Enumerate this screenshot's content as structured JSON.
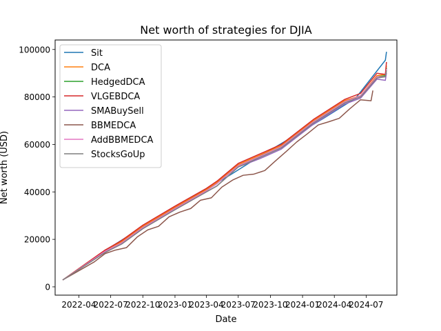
{
  "chart_data": {
    "type": "line",
    "title": "Net worth of strategies for DJIA",
    "xlabel": "Date",
    "ylabel": "Net worth (USD)",
    "x_ticks": [
      "2022-04",
      "2022-07",
      "2022-10",
      "2023-01",
      "2023-04",
      "2023-07",
      "2023-10",
      "2024-01",
      "2024-04",
      "2024-07"
    ],
    "x_range": [
      "2022-01-23",
      "2024-09-27"
    ],
    "ylim": [
      -3500,
      104000
    ],
    "y_ticks": [
      0,
      20000,
      40000,
      60000,
      80000,
      100000
    ],
    "y_tick_labels": [
      "0",
      "20000",
      "40000",
      "60000",
      "80000",
      "100000"
    ],
    "grid": false,
    "legend_position": "upper-left",
    "series": [
      {
        "name": "Sit",
        "color": "#1f77b4",
        "points": [
          [
            "2022-02-15",
            3000
          ],
          [
            "2022-06-01",
            14000
          ],
          [
            "2022-09-01",
            22500
          ],
          [
            "2022-12-01",
            30500
          ],
          [
            "2023-03-01",
            38500
          ],
          [
            "2023-06-01",
            46500
          ],
          [
            "2023-09-01",
            55000
          ],
          [
            "2023-12-01",
            63000
          ],
          [
            "2024-03-01",
            71000
          ],
          [
            "2024-06-01",
            79500
          ],
          [
            "2024-08-25",
            95500
          ],
          [
            "2024-08-28",
            98800
          ]
        ]
      },
      {
        "name": "DCA",
        "color": "#ff7f0e",
        "points": [
          [
            "2022-02-15",
            3000
          ],
          [
            "2022-06-15",
            15500
          ],
          [
            "2022-08-01",
            19000
          ],
          [
            "2022-10-01",
            25500
          ],
          [
            "2023-01-01",
            33500
          ],
          [
            "2023-04-01",
            41000
          ],
          [
            "2023-05-01",
            44000
          ],
          [
            "2023-07-01",
            51500
          ],
          [
            "2023-09-01",
            55500
          ],
          [
            "2023-11-01",
            59500
          ],
          [
            "2024-02-01",
            70000
          ],
          [
            "2024-05-01",
            78500
          ],
          [
            "2024-06-15",
            80500
          ],
          [
            "2024-08-01",
            89000
          ],
          [
            "2024-08-25",
            89500
          ],
          [
            "2024-08-28",
            93000
          ]
        ]
      },
      {
        "name": "HedgedDCA",
        "color": "#2ca02c",
        "points": [
          [
            "2022-02-15",
            3000
          ],
          [
            "2022-06-15",
            15000
          ],
          [
            "2022-08-01",
            18500
          ],
          [
            "2022-10-01",
            25000
          ],
          [
            "2023-01-01",
            33000
          ],
          [
            "2023-04-01",
            40500
          ],
          [
            "2023-05-01",
            43500
          ],
          [
            "2023-07-01",
            51000
          ],
          [
            "2023-09-01",
            55000
          ],
          [
            "2023-11-01",
            59000
          ],
          [
            "2024-02-01",
            69500
          ],
          [
            "2024-05-01",
            78000
          ],
          [
            "2024-06-15",
            80500
          ],
          [
            "2024-08-01",
            88500
          ],
          [
            "2024-08-25",
            89000
          ],
          [
            "2024-08-28",
            92000
          ]
        ]
      },
      {
        "name": "VLGEBDCA",
        "color": "#d62728",
        "points": [
          [
            "2022-02-15",
            3000
          ],
          [
            "2022-06-15",
            15500
          ],
          [
            "2022-08-01",
            19500
          ],
          [
            "2022-10-01",
            26000
          ],
          [
            "2023-01-01",
            34000
          ],
          [
            "2023-04-01",
            41500
          ],
          [
            "2023-05-01",
            44500
          ],
          [
            "2023-07-01",
            52000
          ],
          [
            "2023-09-01",
            56000
          ],
          [
            "2023-11-01",
            60000
          ],
          [
            "2024-02-01",
            70500
          ],
          [
            "2024-05-01",
            79000
          ],
          [
            "2024-06-15",
            81500
          ],
          [
            "2024-08-01",
            90000
          ],
          [
            "2024-08-25",
            89500
          ],
          [
            "2024-08-28",
            94500
          ]
        ]
      },
      {
        "name": "SMABuySell",
        "color": "#9467bd",
        "points": [
          [
            "2022-02-15",
            3000
          ],
          [
            "2022-06-15",
            14500
          ],
          [
            "2022-08-01",
            18000
          ],
          [
            "2022-10-01",
            24500
          ],
          [
            "2023-01-01",
            32500
          ],
          [
            "2023-04-01",
            40000
          ],
          [
            "2023-05-01",
            42500
          ],
          [
            "2023-07-01",
            50500
          ],
          [
            "2023-09-01",
            54000
          ],
          [
            "2023-11-01",
            58000
          ],
          [
            "2024-02-01",
            68500
          ],
          [
            "2024-05-01",
            77000
          ],
          [
            "2024-06-15",
            79500
          ],
          [
            "2024-08-01",
            87500
          ],
          [
            "2024-08-25",
            87000
          ],
          [
            "2024-08-28",
            90000
          ]
        ]
      },
      {
        "name": "BBMEDCA",
        "color": "#8c564b",
        "points": [
          [
            "2022-02-15",
            3000
          ],
          [
            "2022-05-15",
            10500
          ],
          [
            "2022-06-15",
            14000
          ],
          [
            "2022-07-15",
            15500
          ],
          [
            "2022-08-15",
            16500
          ],
          [
            "2022-09-15",
            21000
          ],
          [
            "2022-10-15",
            24000
          ],
          [
            "2022-11-15",
            25500
          ],
          [
            "2022-12-15",
            29500
          ],
          [
            "2023-01-15",
            31500
          ],
          [
            "2023-02-15",
            33000
          ],
          [
            "2023-03-15",
            36500
          ],
          [
            "2023-04-15",
            37500
          ],
          [
            "2023-05-15",
            42000
          ],
          [
            "2023-06-15",
            45000
          ],
          [
            "2023-07-15",
            47000
          ],
          [
            "2023-08-15",
            47500
          ],
          [
            "2023-09-15",
            49000
          ],
          [
            "2023-10-15",
            53000
          ],
          [
            "2023-11-15",
            57000
          ],
          [
            "2023-12-15",
            61000
          ],
          [
            "2024-01-15",
            64500
          ],
          [
            "2024-02-15",
            68200
          ],
          [
            "2024-03-15",
            69500
          ],
          [
            "2024-04-15",
            71000
          ],
          [
            "2024-05-15",
            75000
          ],
          [
            "2024-06-15",
            78800
          ],
          [
            "2024-07-15",
            78400
          ],
          [
            "2024-07-20",
            82500
          ]
        ]
      },
      {
        "name": "AddBBMEDCA",
        "color": "#e377c2",
        "points": [
          [
            "2022-02-15",
            3000
          ],
          [
            "2022-06-15",
            15000
          ],
          [
            "2022-08-01",
            18500
          ],
          [
            "2022-10-01",
            25000
          ],
          [
            "2023-01-01",
            33000
          ],
          [
            "2023-04-01",
            40500
          ],
          [
            "2023-05-01",
            43500
          ],
          [
            "2023-07-01",
            51000
          ],
          [
            "2023-09-01",
            55000
          ],
          [
            "2023-11-01",
            59000
          ],
          [
            "2024-02-01",
            69500
          ],
          [
            "2024-05-01",
            78000
          ],
          [
            "2024-06-15",
            80500
          ],
          [
            "2024-08-01",
            88500
          ],
          [
            "2024-08-25",
            88500
          ],
          [
            "2024-08-28",
            91500
          ]
        ]
      },
      {
        "name": "StocksGoUp",
        "color": "#7f7f7f",
        "points": [
          [
            "2022-02-15",
            3000
          ],
          [
            "2022-06-15",
            14500
          ],
          [
            "2022-08-01",
            18000
          ],
          [
            "2022-10-01",
            24500
          ],
          [
            "2023-01-01",
            32500
          ],
          [
            "2023-04-01",
            40000
          ],
          [
            "2023-05-01",
            42500
          ],
          [
            "2023-07-01",
            50500
          ],
          [
            "2023-09-01",
            54500
          ],
          [
            "2023-11-01",
            58500
          ],
          [
            "2024-02-01",
            69000
          ],
          [
            "2024-05-01",
            77500
          ],
          [
            "2024-06-15",
            80000
          ],
          [
            "2024-08-01",
            88000
          ],
          [
            "2024-08-25",
            88500
          ],
          [
            "2024-08-28",
            91000
          ]
        ]
      }
    ]
  }
}
